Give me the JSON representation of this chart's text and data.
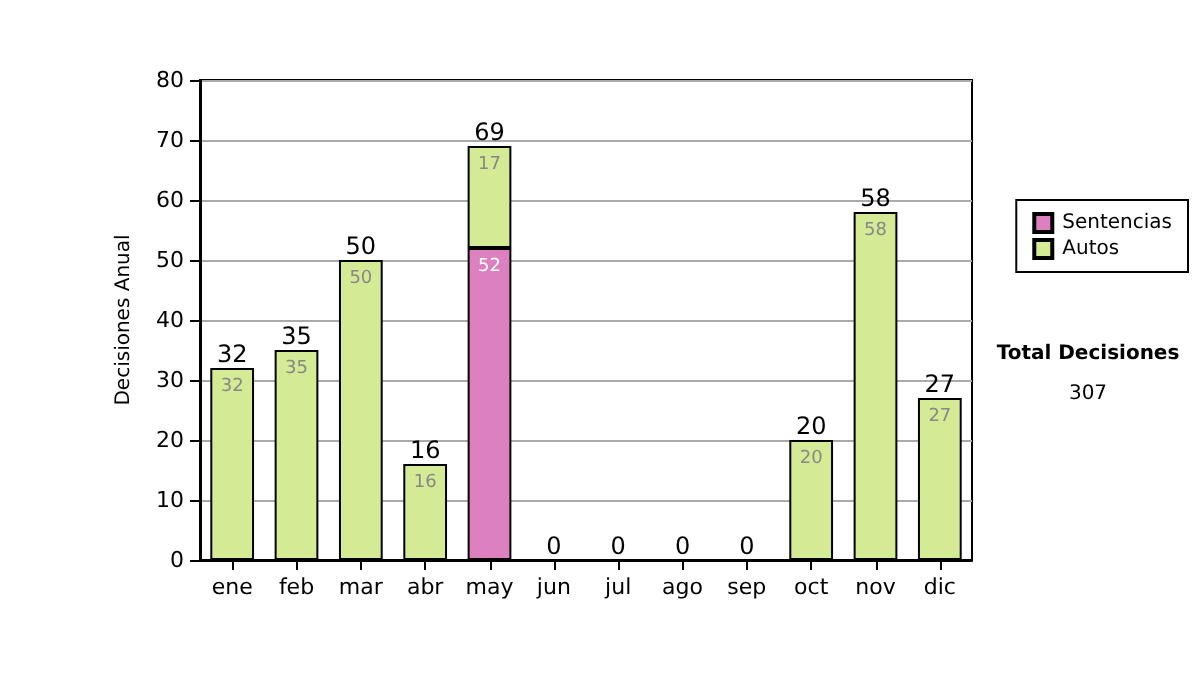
{
  "chart_data": {
    "type": "bar",
    "stacked": true,
    "ylabel": "Decisiones Anual",
    "categories": [
      "ene",
      "feb",
      "mar",
      "abr",
      "may",
      "jun",
      "jul",
      "ago",
      "sep",
      "oct",
      "nov",
      "dic"
    ],
    "series": [
      {
        "name": "Sentencias",
        "color": "#dd80c0",
        "values": [
          0,
          0,
          0,
          0,
          52,
          0,
          0,
          0,
          0,
          0,
          0,
          0
        ],
        "value_labels": [
          null,
          null,
          null,
          null,
          "52",
          null,
          null,
          null,
          null,
          null,
          null,
          null
        ]
      },
      {
        "name": "Autos",
        "color": "#d4ea94",
        "values": [
          32,
          35,
          50,
          16,
          17,
          0,
          0,
          0,
          0,
          20,
          58,
          27
        ],
        "value_labels": [
          "32",
          "35",
          "50",
          "16",
          "17",
          null,
          null,
          null,
          null,
          "20",
          "58",
          "27"
        ]
      }
    ],
    "totals": [
      "32",
      "35",
      "50",
      "16",
      "69",
      "0",
      "0",
      "0",
      "0",
      "20",
      "58",
      "27"
    ],
    "ylim": [
      0,
      80
    ],
    "yticks": [
      0,
      10,
      20,
      30,
      40,
      50,
      60,
      70,
      80
    ],
    "grid": "y",
    "legend": "right",
    "annotations": [
      "Total Decisiones",
      "307"
    ]
  }
}
